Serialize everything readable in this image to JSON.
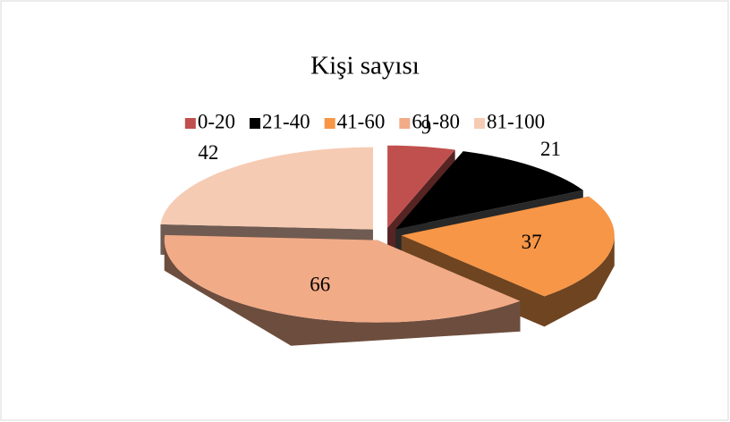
{
  "chart_data": {
    "type": "pie3d",
    "title": "Kişi sayısı",
    "categories": [
      "0-20",
      "21-40",
      "41-60",
      "61-80",
      "81-100"
    ],
    "values": [
      9,
      21,
      37,
      66,
      42
    ],
    "colors": [
      "#c0504d",
      "#000000",
      "#f79646",
      "#f2ab87",
      "#f6cbb3"
    ],
    "legend": "top"
  }
}
